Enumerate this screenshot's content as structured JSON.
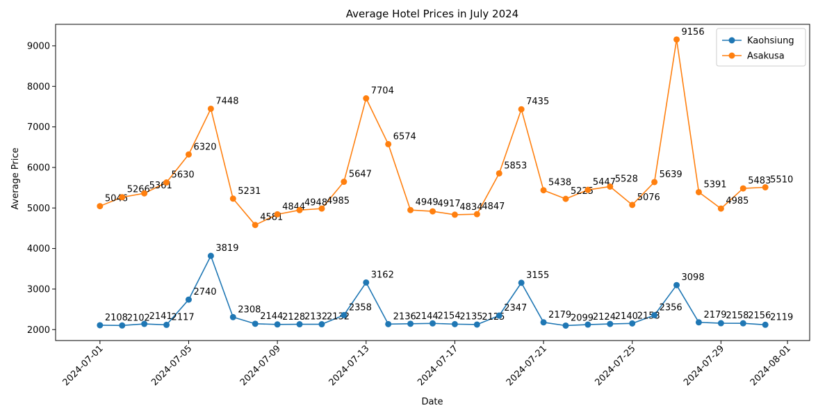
{
  "chart_data": {
    "type": "line",
    "title": "Average Hotel Prices in July 2024",
    "xlabel": "Date",
    "ylabel": "Average Price",
    "x": [
      "2024-07-01",
      "2024-07-02",
      "2024-07-03",
      "2024-07-04",
      "2024-07-05",
      "2024-07-06",
      "2024-07-07",
      "2024-07-08",
      "2024-07-09",
      "2024-07-10",
      "2024-07-11",
      "2024-07-12",
      "2024-07-13",
      "2024-07-14",
      "2024-07-15",
      "2024-07-16",
      "2024-07-17",
      "2024-07-18",
      "2024-07-19",
      "2024-07-20",
      "2024-07-21",
      "2024-07-22",
      "2024-07-23",
      "2024-07-24",
      "2024-07-25",
      "2024-07-26",
      "2024-07-27",
      "2024-07-28",
      "2024-07-29",
      "2024-07-30",
      "2024-07-31"
    ],
    "x_ticks": [
      "2024-07-01",
      "2024-07-05",
      "2024-07-09",
      "2024-07-13",
      "2024-07-17",
      "2024-07-21",
      "2024-07-25",
      "2024-07-29",
      "2024-08-01"
    ],
    "y_ticks": [
      2000,
      3000,
      4000,
      5000,
      6000,
      7000,
      8000,
      9000
    ],
    "xlim": [
      "2024-06-29",
      "2024-08-02"
    ],
    "ylim": [
      1730,
      9530
    ],
    "grid": false,
    "legend_position": "top-right",
    "series": [
      {
        "name": "Kaohsiung",
        "color": "#1f77b4",
        "marker": "circle",
        "values": [
          2108,
          2102,
          2141,
          2117,
          2740,
          3819,
          2308,
          2144,
          2128,
          2132,
          2132,
          2358,
          3162,
          2136,
          2144,
          2154,
          2135,
          2125,
          2347,
          3155,
          2179,
          2099,
          2124,
          2140,
          2153,
          2356,
          3098,
          2179,
          2158,
          2156,
          2119
        ]
      },
      {
        "name": "Asakusa",
        "color": "#ff7f0e",
        "marker": "circle",
        "values": [
          5046,
          5266,
          5361,
          5630,
          6320,
          7448,
          5231,
          4581,
          4844,
          4948,
          4985,
          5647,
          7704,
          6574,
          4949,
          4917,
          4834,
          4847,
          5853,
          7435,
          5438,
          5225,
          5447,
          5528,
          5076,
          5639,
          9156,
          5391,
          4985,
          5483,
          5510
        ]
      }
    ]
  }
}
